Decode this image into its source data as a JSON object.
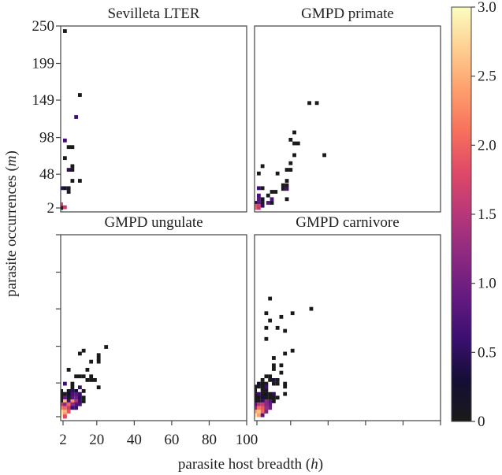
{
  "chart_data": {
    "type": "heatmap",
    "xlabel": "parasite host breadth (",
    "xlabel_var": "h",
    "xlabel_end": ")",
    "ylabel": "parasite occurrences (",
    "ylabel_var": "m",
    "ylabel_end": ")",
    "xlim": [
      2,
      100
    ],
    "ylim": [
      2,
      250
    ],
    "xticks": [
      2,
      20,
      40,
      60,
      80,
      100
    ],
    "xtick_labels": [
      "2",
      "20",
      "40",
      "60",
      "80",
      "100"
    ],
    "yticks": [
      2,
      48,
      98,
      149,
      199,
      250
    ],
    "ytick_labels": [
      "2",
      "48",
      "98",
      "149",
      "199",
      "250"
    ],
    "colorbar": {
      "range": [
        0,
        3
      ],
      "ticks": [
        0,
        0.5,
        1.0,
        1.5,
        2.0,
        2.5,
        3.0
      ],
      "tick_labels": [
        "0",
        "0.5",
        "1.0",
        "1.5",
        "2.0",
        "2.5",
        "3.0"
      ],
      "colormap": [
        "#1a1a1a",
        "#140e36",
        "#3b0f70",
        "#641a80",
        "#8c2981",
        "#b73779",
        "#de4968",
        "#f7705c",
        "#fe9f6d",
        "#fecf92",
        "#fcfdbf"
      ]
    },
    "panels": [
      {
        "title": "Sevilleta LTER",
        "cells": [
          [
            3,
            243,
            0
          ],
          [
            11,
            156,
            0
          ],
          [
            9,
            126,
            0.6
          ],
          [
            3,
            94,
            0.6
          ],
          [
            5,
            85,
            0
          ],
          [
            7,
            85,
            0
          ],
          [
            3,
            70,
            0
          ],
          [
            5,
            54,
            0.5
          ],
          [
            7,
            59,
            0
          ],
          [
            7,
            54,
            0
          ],
          [
            7,
            39,
            0
          ],
          [
            11,
            39,
            0
          ],
          [
            1,
            29,
            0.5
          ],
          [
            3,
            29,
            0.2
          ],
          [
            5,
            29,
            0
          ],
          [
            5,
            24,
            0
          ],
          [
            1,
            7,
            1.8
          ],
          [
            1,
            3,
            1.6
          ],
          [
            3,
            3,
            1.6
          ],
          [
            1,
            2,
            0
          ]
        ]
      },
      {
        "title": "GMPD primate",
        "cells": [
          [
            30,
            145,
            0
          ],
          [
            34,
            145,
            0
          ],
          [
            22,
            105,
            0
          ],
          [
            20,
            95,
            0
          ],
          [
            22,
            90,
            0
          ],
          [
            24,
            90,
            0
          ],
          [
            22,
            74,
            0
          ],
          [
            38,
            74,
            0
          ],
          [
            20,
            63,
            0
          ],
          [
            5,
            59,
            0
          ],
          [
            3,
            49,
            0
          ],
          [
            13,
            49,
            0
          ],
          [
            18,
            54,
            0
          ],
          [
            20,
            54,
            0
          ],
          [
            18,
            39,
            0
          ],
          [
            16,
            33,
            0
          ],
          [
            18,
            33,
            0
          ],
          [
            16,
            28,
            0
          ],
          [
            18,
            28,
            0.6
          ],
          [
            3,
            29,
            0.6
          ],
          [
            5,
            29,
            0
          ],
          [
            10,
            24,
            0
          ],
          [
            12,
            24,
            0
          ],
          [
            3,
            19,
            0.7
          ],
          [
            8,
            19,
            0
          ],
          [
            3,
            14,
            0.8
          ],
          [
            5,
            14,
            0.2
          ],
          [
            10,
            14,
            0.7
          ],
          [
            18,
            14,
            0
          ],
          [
            1,
            9,
            0.2
          ],
          [
            3,
            9,
            0.8
          ],
          [
            5,
            9,
            0
          ],
          [
            8,
            9,
            0.8
          ],
          [
            10,
            9,
            0
          ],
          [
            1,
            5,
            1.9
          ],
          [
            3,
            5,
            1.7
          ],
          [
            5,
            5,
            0.5
          ],
          [
            1,
            2,
            2.0
          ],
          [
            3,
            2,
            1.6
          ]
        ]
      },
      {
        "title": "GMPD ungulate",
        "cells": [
          [
            25,
            97,
            0
          ],
          [
            13,
            92,
            0
          ],
          [
            11,
            88,
            0
          ],
          [
            21,
            86,
            0
          ],
          [
            21,
            81,
            0
          ],
          [
            21,
            77,
            0
          ],
          [
            17,
            77,
            0
          ],
          [
            5,
            66,
            0
          ],
          [
            15,
            66,
            0
          ],
          [
            9,
            57,
            0
          ],
          [
            11,
            57,
            0
          ],
          [
            13,
            57,
            0
          ],
          [
            17,
            57,
            0
          ],
          [
            15,
            52,
            0
          ],
          [
            17,
            52,
            0
          ],
          [
            19,
            52,
            0
          ],
          [
            21,
            42,
            0
          ],
          [
            3,
            47,
            0.6
          ],
          [
            7,
            47,
            0
          ],
          [
            11,
            42,
            0.6
          ],
          [
            7,
            42,
            0
          ],
          [
            1,
            37,
            0
          ],
          [
            5,
            37,
            0
          ],
          [
            7,
            37,
            0.5
          ],
          [
            9,
            37,
            0.3
          ],
          [
            13,
            37,
            0
          ],
          [
            1,
            33,
            0
          ],
          [
            3,
            33,
            0
          ],
          [
            5,
            33,
            0.3
          ],
          [
            7,
            33,
            0.7
          ],
          [
            9,
            33,
            0.8
          ],
          [
            11,
            33,
            0.6
          ],
          [
            1,
            28,
            0
          ],
          [
            3,
            28,
            0.9
          ],
          [
            5,
            28,
            0
          ],
          [
            7,
            28,
            0.8
          ],
          [
            9,
            28,
            1.0
          ],
          [
            11,
            28,
            0.5
          ],
          [
            13,
            28,
            0
          ],
          [
            1,
            23,
            0
          ],
          [
            3,
            23,
            2.6
          ],
          [
            5,
            23,
            0.6
          ],
          [
            7,
            23,
            2.3
          ],
          [
            9,
            23,
            1.4
          ],
          [
            11,
            23,
            0.6
          ],
          [
            13,
            23,
            0
          ],
          [
            1,
            19,
            1.6
          ],
          [
            3,
            19,
            1.2
          ],
          [
            5,
            19,
            2.0
          ],
          [
            7,
            19,
            1.2
          ],
          [
            9,
            19,
            0.8
          ],
          [
            11,
            19,
            0.7
          ],
          [
            1,
            14,
            2.2
          ],
          [
            3,
            14,
            2.0
          ],
          [
            5,
            14,
            1.6
          ],
          [
            7,
            14,
            0.6
          ],
          [
            9,
            14,
            0.6
          ],
          [
            1,
            9,
            2.8
          ],
          [
            3,
            9,
            2.5
          ],
          [
            5,
            9,
            1.9
          ],
          [
            1,
            4,
            2.9
          ],
          [
            3,
            4,
            2.2
          ],
          [
            3,
            2,
            1.8
          ]
        ]
      },
      {
        "title": "GMPD carnivore",
        "cells": [
          [
            9,
            163,
            0
          ],
          [
            31,
            149,
            0
          ],
          [
            7,
            143,
            0
          ],
          [
            21,
            143,
            0
          ],
          [
            15,
            138,
            0
          ],
          [
            9,
            133,
            0
          ],
          [
            7,
            123,
            0
          ],
          [
            13,
            123,
            0
          ],
          [
            17,
            119,
            0
          ],
          [
            7,
            108,
            0
          ],
          [
            21,
            92,
            0
          ],
          [
            17,
            88,
            0
          ],
          [
            11,
            82,
            0
          ],
          [
            15,
            72,
            0
          ],
          [
            11,
            72,
            0
          ],
          [
            11,
            67,
            0
          ],
          [
            15,
            62,
            0
          ],
          [
            7,
            57,
            0
          ],
          [
            9,
            57,
            0
          ],
          [
            5,
            52,
            0
          ],
          [
            9,
            52,
            0
          ],
          [
            11,
            52,
            0.4
          ],
          [
            13,
            52,
            0
          ],
          [
            3,
            47,
            0.3
          ],
          [
            5,
            47,
            0
          ],
          [
            7,
            47,
            0
          ],
          [
            11,
            47,
            0
          ],
          [
            13,
            47,
            0
          ],
          [
            17,
            47,
            0
          ],
          [
            1,
            43,
            0
          ],
          [
            3,
            43,
            0
          ],
          [
            5,
            43,
            0
          ],
          [
            7,
            43,
            0.6
          ],
          [
            17,
            43,
            0
          ],
          [
            1,
            38,
            0
          ],
          [
            5,
            38,
            0
          ],
          [
            7,
            38,
            0
          ],
          [
            1,
            33,
            0
          ],
          [
            3,
            33,
            0.6
          ],
          [
            5,
            33,
            0
          ],
          [
            7,
            33,
            0.2
          ],
          [
            9,
            33,
            0
          ],
          [
            11,
            33,
            0.5
          ],
          [
            17,
            33,
            0
          ],
          [
            1,
            28,
            0
          ],
          [
            3,
            28,
            0
          ],
          [
            5,
            28,
            0.4
          ],
          [
            7,
            28,
            0
          ],
          [
            9,
            28,
            0
          ],
          [
            11,
            28,
            0
          ],
          [
            13,
            28,
            0
          ],
          [
            1,
            23,
            0.2
          ],
          [
            3,
            23,
            0
          ],
          [
            5,
            23,
            0.5
          ],
          [
            7,
            23,
            1.2
          ],
          [
            9,
            23,
            0.8
          ],
          [
            11,
            23,
            0
          ],
          [
            1,
            19,
            0.8
          ],
          [
            3,
            19,
            1.5
          ],
          [
            5,
            19,
            1.6
          ],
          [
            7,
            19,
            1.2
          ],
          [
            9,
            19,
            0.9
          ],
          [
            1,
            14,
            1.2
          ],
          [
            3,
            14,
            2.1
          ],
          [
            5,
            14,
            1.9
          ],
          [
            7,
            14,
            1.3
          ],
          [
            9,
            14,
            1.0
          ],
          [
            1,
            9,
            2.4
          ],
          [
            3,
            9,
            2.6
          ],
          [
            5,
            9,
            2.0
          ],
          [
            7,
            9,
            1.1
          ],
          [
            1,
            4,
            2.9
          ],
          [
            3,
            4,
            2.4
          ],
          [
            5,
            4,
            0.8
          ]
        ]
      }
    ]
  }
}
